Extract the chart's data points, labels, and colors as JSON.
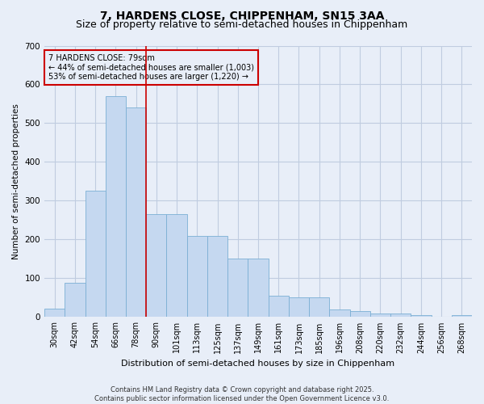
{
  "title1": "7, HARDENS CLOSE, CHIPPENHAM, SN15 3AA",
  "title2": "Size of property relative to semi-detached houses in Chippenham",
  "xlabel": "Distribution of semi-detached houses by size in Chippenham",
  "ylabel": "Number of semi-detached properties",
  "categories": [
    "30sqm",
    "42sqm",
    "54sqm",
    "66sqm",
    "78sqm",
    "90sqm",
    "101sqm",
    "113sqm",
    "125sqm",
    "137sqm",
    "149sqm",
    "161sqm",
    "173sqm",
    "185sqm",
    "196sqm",
    "208sqm",
    "220sqm",
    "232sqm",
    "244sqm",
    "256sqm",
    "268sqm"
  ],
  "values": [
    22,
    88,
    325,
    570,
    540,
    265,
    265,
    210,
    210,
    150,
    150,
    55,
    50,
    50,
    20,
    15,
    10,
    10,
    5,
    0,
    5
  ],
  "bar_color": "#c5d8f0",
  "bar_edge_color": "#7bafd4",
  "vline_x_index": 4,
  "vline_color": "#cc0000",
  "annotation_title": "7 HARDENS CLOSE: 79sqm",
  "annotation_line1": "← 44% of semi-detached houses are smaller (1,003)",
  "annotation_line2": "53% of semi-detached houses are larger (1,220) →",
  "annotation_box_color": "#cc0000",
  "ylim": [
    0,
    700
  ],
  "yticks": [
    0,
    100,
    200,
    300,
    400,
    500,
    600,
    700
  ],
  "footer1": "Contains HM Land Registry data © Crown copyright and database right 2025.",
  "footer2": "Contains public sector information licensed under the Open Government Licence v3.0.",
  "background_color": "#e8eef8",
  "grid_color": "#c0cce0",
  "title1_fontsize": 10,
  "title2_fontsize": 9,
  "xlabel_fontsize": 8,
  "ylabel_fontsize": 7.5,
  "tick_fontsize": 7,
  "ytick_fontsize": 7.5,
  "footer_fontsize": 6,
  "annotation_fontsize": 7
}
